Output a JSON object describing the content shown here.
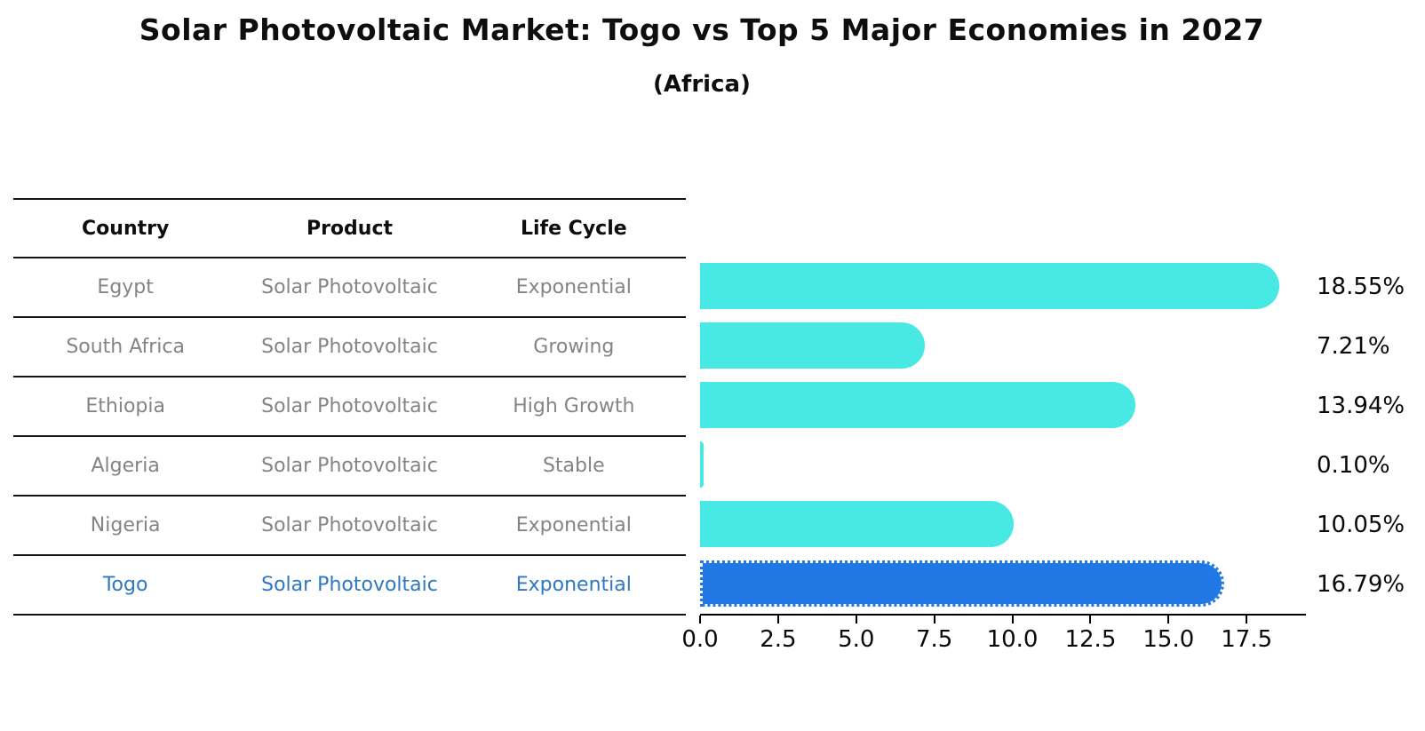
{
  "title": "Solar Photovoltaic Market: Togo vs Top 5 Major Economies in 2027",
  "subtitle": "(Africa)",
  "colors": {
    "bar_default": "#48E8E4",
    "bar_highlight": "#2177E4",
    "row_text": "#848484",
    "highlight_text": "#2D78C3"
  },
  "table": {
    "headers": [
      "Country",
      "Product",
      "Life Cycle"
    ],
    "rows": [
      {
        "country": "Egypt",
        "product": "Solar Photovoltaic",
        "life_cycle": "Exponential"
      },
      {
        "country": "South Africa",
        "product": "Solar Photovoltaic",
        "life_cycle": "Growing"
      },
      {
        "country": "Ethiopia",
        "product": "Solar Photovoltaic",
        "life_cycle": "High Growth"
      },
      {
        "country": "Algeria",
        "product": "Solar Photovoltaic",
        "life_cycle": "Stable"
      },
      {
        "country": "Nigeria",
        "product": "Solar Photovoltaic",
        "life_cycle": "Exponential"
      },
      {
        "country": "Togo",
        "product": "Solar Photovoltaic",
        "life_cycle": "Exponential"
      }
    ]
  },
  "chart_data": {
    "type": "bar",
    "orientation": "horizontal",
    "title": "Solar Photovoltaic Market: Togo vs Top 5 Major Economies in 2027",
    "subtitle": "(Africa)",
    "categories": [
      "Egypt",
      "South Africa",
      "Ethiopia",
      "Algeria",
      "Nigeria",
      "Togo"
    ],
    "values": [
      18.55,
      7.21,
      13.94,
      0.1,
      10.05,
      16.79
    ],
    "labels": [
      "18.55%",
      "7.21%",
      "13.94%",
      "0.10%",
      "10.05%",
      "16.79%"
    ],
    "highlight_index": 5,
    "xlim": [
      0,
      19.4
    ],
    "xticks": [
      0.0,
      2.5,
      5.0,
      7.5,
      10.0,
      12.5,
      15.0,
      17.5
    ],
    "xtick_labels": [
      "0.0",
      "2.5",
      "5.0",
      "7.5",
      "10.0",
      "12.5",
      "15.0",
      "17.5"
    ],
    "grid": false,
    "legend": false
  }
}
